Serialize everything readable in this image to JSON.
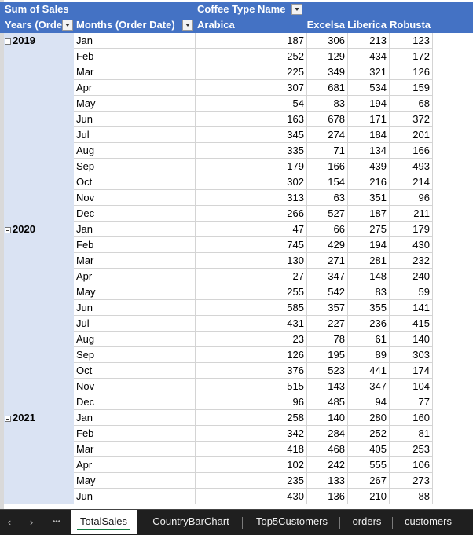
{
  "pivot": {
    "value_field": "Sum of Sales",
    "column_field": "Coffee Type Name",
    "row_field_1": "Years (Order Date)",
    "row_field_1_display": "Years (Orde",
    "row_field_2": "Months (Order Date)",
    "columns": [
      "Arabica",
      "Excelsa",
      "Liberica",
      "Robusta"
    ],
    "groups": [
      {
        "year": "2019",
        "rows": [
          {
            "month": "Jan",
            "values": [
              187,
              306,
              213,
              123
            ]
          },
          {
            "month": "Feb",
            "values": [
              252,
              129,
              434,
              172
            ]
          },
          {
            "month": "Mar",
            "values": [
              225,
              349,
              321,
              126
            ]
          },
          {
            "month": "Apr",
            "values": [
              307,
              681,
              534,
              159
            ]
          },
          {
            "month": "May",
            "values": [
              54,
              83,
              194,
              68
            ]
          },
          {
            "month": "Jun",
            "values": [
              163,
              678,
              171,
              372
            ]
          },
          {
            "month": "Jul",
            "values": [
              345,
              274,
              184,
              201
            ]
          },
          {
            "month": "Aug",
            "values": [
              335,
              71,
              134,
              166
            ]
          },
          {
            "month": "Sep",
            "values": [
              179,
              166,
              439,
              493
            ]
          },
          {
            "month": "Oct",
            "values": [
              302,
              154,
              216,
              214
            ]
          },
          {
            "month": "Nov",
            "values": [
              313,
              63,
              351,
              96
            ]
          },
          {
            "month": "Dec",
            "values": [
              266,
              527,
              187,
              211
            ]
          }
        ]
      },
      {
        "year": "2020",
        "rows": [
          {
            "month": "Jan",
            "values": [
              47,
              66,
              275,
              179
            ]
          },
          {
            "month": "Feb",
            "values": [
              745,
              429,
              194,
              430
            ]
          },
          {
            "month": "Mar",
            "values": [
              130,
              271,
              281,
              232
            ]
          },
          {
            "month": "Apr",
            "values": [
              27,
              347,
              148,
              240
            ]
          },
          {
            "month": "May",
            "values": [
              255,
              542,
              83,
              59
            ]
          },
          {
            "month": "Jun",
            "values": [
              585,
              357,
              355,
              141
            ]
          },
          {
            "month": "Jul",
            "values": [
              431,
              227,
              236,
              415
            ]
          },
          {
            "month": "Aug",
            "values": [
              23,
              78,
              61,
              140
            ]
          },
          {
            "month": "Sep",
            "values": [
              126,
              195,
              89,
              303
            ]
          },
          {
            "month": "Oct",
            "values": [
              376,
              523,
              441,
              174
            ]
          },
          {
            "month": "Nov",
            "values": [
              515,
              143,
              347,
              104
            ]
          },
          {
            "month": "Dec",
            "values": [
              96,
              485,
              94,
              77
            ]
          }
        ]
      },
      {
        "year": "2021",
        "rows": [
          {
            "month": "Jan",
            "values": [
              258,
              140,
              280,
              160
            ]
          },
          {
            "month": "Feb",
            "values": [
              342,
              284,
              252,
              81
            ]
          },
          {
            "month": "Mar",
            "values": [
              418,
              468,
              405,
              253
            ]
          },
          {
            "month": "Apr",
            "values": [
              102,
              242,
              555,
              106
            ]
          },
          {
            "month": "May",
            "values": [
              235,
              133,
              267,
              273
            ]
          },
          {
            "month": "Jun",
            "values": [
              430,
              136,
              210,
              88
            ]
          }
        ]
      }
    ]
  },
  "sheet_tabs": {
    "nav_prev": "‹",
    "nav_next": "›",
    "nav_more": "•••",
    "tabs": [
      "TotalSales",
      "CountryBarChart",
      "Top5Customers",
      "orders",
      "customers"
    ],
    "active": "TotalSales"
  },
  "colors": {
    "header_bg": "#4472c4",
    "year_band": "#dae3f3",
    "tab_bar": "#1f1f1f",
    "active_tab_underline": "#107c41"
  }
}
